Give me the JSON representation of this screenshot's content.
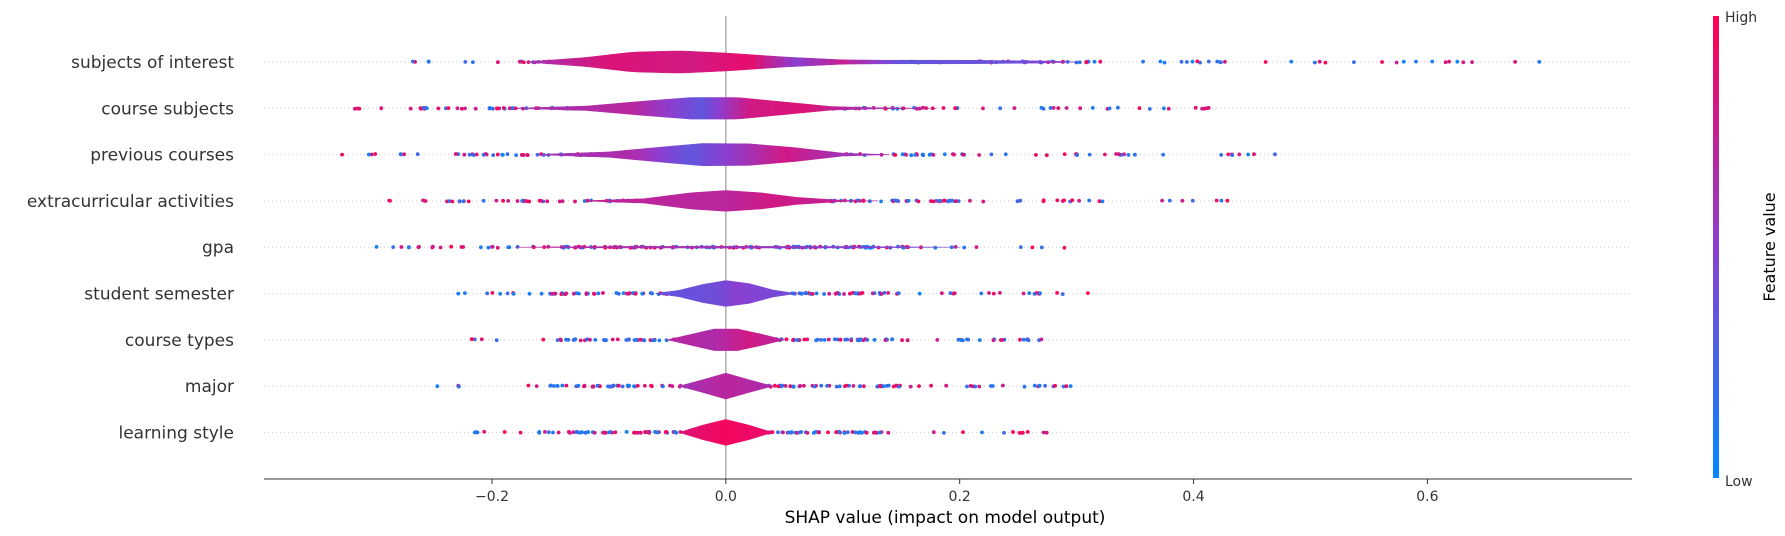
{
  "chart_data": {
    "type": "violin",
    "title": "",
    "xlabel": "SHAP value (impact on model output)",
    "x_ticks": [
      -0.2,
      0.0,
      0.2,
      0.4,
      0.6
    ],
    "x_tick_labels": [
      "−0.2",
      "0.0",
      "0.2",
      "0.4",
      "0.6"
    ],
    "xlim": [
      -0.395,
      0.775
    ],
    "colorbar": {
      "title": "Feature value",
      "high_label": "High",
      "low_label": "Low",
      "low_color": "#008bfb",
      "high_color": "#ff0052"
    },
    "features": [
      {
        "name": "subjects of interest",
        "range": [
          -0.28,
          0.72
        ],
        "median": 0.05,
        "profile": [
          [
            -0.17,
            0.01
          ],
          [
            -0.12,
            0.25
          ],
          [
            -0.08,
            0.55
          ],
          [
            -0.04,
            0.62
          ],
          [
            0.0,
            0.5
          ],
          [
            0.05,
            0.28
          ],
          [
            0.1,
            0.12
          ],
          [
            0.14,
            0.1
          ],
          [
            0.2,
            0.1
          ],
          [
            0.27,
            0.06
          ],
          [
            0.3,
            0.0
          ]
        ],
        "colors": [
          [
            -0.17,
            0.6
          ],
          [
            -0.1,
            0.85
          ],
          [
            -0.03,
            0.8
          ],
          [
            0.02,
            0.9
          ],
          [
            0.06,
            0.5
          ],
          [
            0.1,
            0.75
          ],
          [
            0.15,
            0.35
          ],
          [
            0.25,
            0.4
          ],
          [
            0.3,
            0.6
          ]
        ]
      },
      {
        "name": "course subjects",
        "range": [
          -0.32,
          0.44
        ],
        "median": 0.0,
        "profile": [
          [
            -0.18,
            0.01
          ],
          [
            -0.12,
            0.12
          ],
          [
            -0.07,
            0.4
          ],
          [
            -0.03,
            0.6
          ],
          [
            0.01,
            0.6
          ],
          [
            0.05,
            0.35
          ],
          [
            0.09,
            0.1
          ],
          [
            0.13,
            0.03
          ],
          [
            0.18,
            0.0
          ]
        ],
        "colors": [
          [
            -0.18,
            0.6
          ],
          [
            -0.08,
            0.7
          ],
          [
            -0.02,
            0.35
          ],
          [
            0.02,
            0.8
          ],
          [
            0.07,
            0.85
          ],
          [
            0.12,
            0.6
          ],
          [
            0.18,
            0.7
          ]
        ]
      },
      {
        "name": "previous courses",
        "range": [
          -0.34,
          0.48
        ],
        "median": 0.0,
        "profile": [
          [
            -0.16,
            0.01
          ],
          [
            -0.1,
            0.15
          ],
          [
            -0.05,
            0.45
          ],
          [
            -0.02,
            0.62
          ],
          [
            0.02,
            0.6
          ],
          [
            0.06,
            0.38
          ],
          [
            0.1,
            0.08
          ],
          [
            0.14,
            0.0
          ]
        ],
        "colors": [
          [
            -0.16,
            0.6
          ],
          [
            -0.08,
            0.65
          ],
          [
            -0.03,
            0.35
          ],
          [
            0.01,
            0.55
          ],
          [
            0.05,
            0.8
          ],
          [
            0.1,
            0.6
          ],
          [
            0.14,
            0.6
          ]
        ]
      },
      {
        "name": "extracurricular activities",
        "range": [
          -0.29,
          0.44
        ],
        "median": 0.0,
        "profile": [
          [
            -0.12,
            0.01
          ],
          [
            -0.07,
            0.12
          ],
          [
            -0.03,
            0.45
          ],
          [
            0.0,
            0.58
          ],
          [
            0.03,
            0.45
          ],
          [
            0.06,
            0.2
          ],
          [
            0.1,
            0.03
          ],
          [
            0.13,
            0.0
          ]
        ],
        "colors": [
          [
            -0.12,
            0.75
          ],
          [
            -0.04,
            0.7
          ],
          [
            0.0,
            0.7
          ],
          [
            0.04,
            0.8
          ],
          [
            0.13,
            0.7
          ]
        ]
      },
      {
        "name": "gpa",
        "range": [
          -0.3,
          0.31
        ],
        "median": 0.0,
        "profile": [
          [
            -0.18,
            0.0
          ],
          [
            -0.1,
            0.04
          ],
          [
            0.0,
            0.05
          ],
          [
            0.1,
            0.04
          ],
          [
            0.2,
            0.0
          ]
        ],
        "colors": [
          [
            -0.18,
            0.7
          ],
          [
            0.0,
            0.6
          ],
          [
            0.2,
            0.4
          ]
        ]
      },
      {
        "name": "student semester",
        "range": [
          -0.24,
          0.31
        ],
        "median": 0.0,
        "profile": [
          [
            -0.06,
            0.0
          ],
          [
            -0.04,
            0.18
          ],
          [
            -0.02,
            0.5
          ],
          [
            0.0,
            0.72
          ],
          [
            0.02,
            0.55
          ],
          [
            0.04,
            0.2
          ],
          [
            0.06,
            0.0
          ]
        ],
        "colors": [
          [
            -0.06,
            0.35
          ],
          [
            -0.01,
            0.4
          ],
          [
            0.01,
            0.5
          ],
          [
            0.06,
            0.4
          ]
        ]
      },
      {
        "name": "course types",
        "range": [
          -0.23,
          0.29
        ],
        "median": 0.0,
        "profile": [
          [
            -0.05,
            0.0
          ],
          [
            -0.03,
            0.3
          ],
          [
            -0.01,
            0.6
          ],
          [
            0.01,
            0.6
          ],
          [
            0.03,
            0.32
          ],
          [
            0.05,
            0.0
          ]
        ],
        "colors": [
          [
            -0.05,
            0.7
          ],
          [
            -0.01,
            0.65
          ],
          [
            0.02,
            0.8
          ],
          [
            0.05,
            0.7
          ]
        ]
      },
      {
        "name": "major",
        "range": [
          -0.25,
          0.3
        ],
        "median": 0.0,
        "profile": [
          [
            -0.04,
            0.0
          ],
          [
            -0.02,
            0.35
          ],
          [
            0.0,
            0.72
          ],
          [
            0.02,
            0.35
          ],
          [
            0.04,
            0.0
          ]
        ],
        "colors": [
          [
            -0.04,
            0.6
          ],
          [
            0.0,
            0.7
          ],
          [
            0.04,
            0.65
          ]
        ]
      },
      {
        "name": "learning style",
        "range": [
          -0.22,
          0.28
        ],
        "median": 0.0,
        "profile": [
          [
            -0.04,
            0.0
          ],
          [
            -0.02,
            0.4
          ],
          [
            0.0,
            0.72
          ],
          [
            0.02,
            0.4
          ],
          [
            0.04,
            0.0
          ]
        ],
        "colors": [
          [
            -0.04,
            0.85
          ],
          [
            0.0,
            0.95
          ],
          [
            0.04,
            0.9
          ]
        ]
      }
    ]
  }
}
